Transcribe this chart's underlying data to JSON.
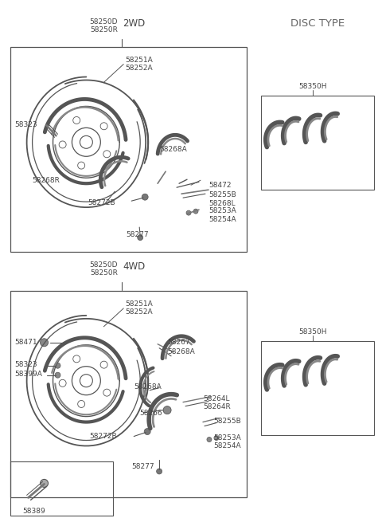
{
  "bg_color": "#ffffff",
  "line_color": "#555555",
  "text_color": "#444444",
  "fs": 6.5,
  "fs_wd": 8.5,
  "fs_title": 9.5,
  "title": "DISC TYPE",
  "label_2wd_part": "58250D\n58250R",
  "label_2wd": "2WD",
  "label_4wd_part": "58250D\n58250R",
  "label_4wd": "4WD",
  "label_58350h": "58350H"
}
